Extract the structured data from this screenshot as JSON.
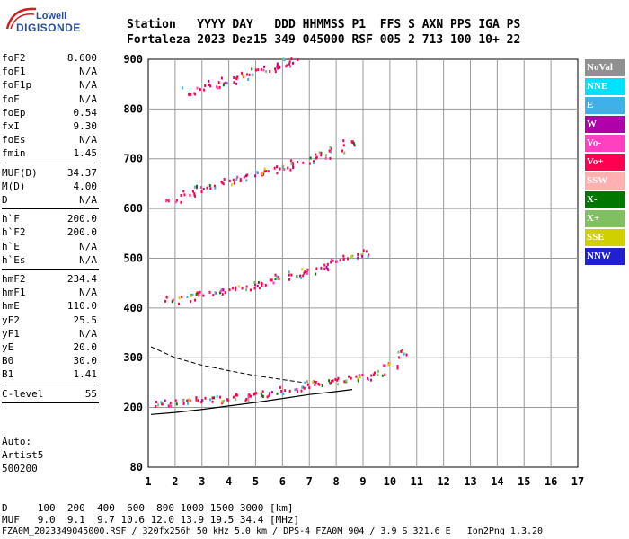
{
  "logo": {
    "top": "Lowell",
    "bottom": "DIGISONDE"
  },
  "header": {
    "line1": "Station   YYYY DAY   DDD HHMMSS P1  FFS S AXN PPS IGA PS",
    "line2": "Fortaleza 2023 Dez15 349 045000 RSF 005 2 713 100 10+ 22"
  },
  "params_groups": [
    [
      [
        "foF2",
        "8.600"
      ],
      [
        "foF1",
        "N/A"
      ],
      [
        "foF1p",
        "N/A"
      ],
      [
        "foE",
        "N/A"
      ],
      [
        "foEp",
        "0.54"
      ],
      [
        "fxI",
        "9.30"
      ],
      [
        "foEs",
        "N/A"
      ],
      [
        "fmin",
        "1.45"
      ]
    ],
    [
      [
        "MUF(D)",
        "34.37"
      ],
      [
        "M(D)",
        "4.00"
      ],
      [
        "D",
        "N/A"
      ]
    ],
    [
      [
        "h`F",
        "200.0"
      ],
      [
        "h`F2",
        "200.0"
      ],
      [
        "h`E",
        "N/A"
      ],
      [
        "h`Es",
        "N/A"
      ]
    ],
    [
      [
        "hmF2",
        "234.4"
      ],
      [
        "hmF1",
        "N/A"
      ],
      [
        "hmE",
        "110.0"
      ],
      [
        "yF2",
        "25.5"
      ],
      [
        "yF1",
        "N/A"
      ],
      [
        "yE",
        "20.0"
      ],
      [
        "B0",
        "30.0"
      ],
      [
        "B1",
        "1.41"
      ]
    ],
    [
      [
        "C-level",
        "55"
      ]
    ]
  ],
  "auto": [
    "Auto:",
    "Artist5",
    "500200"
  ],
  "legend": [
    {
      "label": "NoVal",
      "color": "#909090"
    },
    {
      "label": "NNE",
      "color": "#00e0ff"
    },
    {
      "label": "E",
      "color": "#40b0e8"
    },
    {
      "label": "W",
      "color": "#b000a8"
    },
    {
      "label": "Vo-",
      "color": "#ff40c0"
    },
    {
      "label": "Vo+",
      "color": "#ff0050"
    },
    {
      "label": "SSW",
      "color": "#ffb0b0"
    },
    {
      "label": "X-",
      "color": "#007800"
    },
    {
      "label": "X+",
      "color": "#80c060"
    },
    {
      "label": "SSE",
      "color": "#d0d000"
    },
    {
      "label": "NNW",
      "color": "#2020d0"
    }
  ],
  "footer": {
    "line1": "D     100  200  400  600  800 1000 1500 3000 [km]",
    "line2": "MUF   9.0  9.1  9.7 10.6 12.0 13.9 19.5 34.4 [MHz]",
    "line3": "FZA0M_2023349045000.RSF / 320fx256h 50 kHz 5.0 km / DPS-4 FZA0M 904 / 3.9 S 321.6 E   Ion2Png 1.3.20"
  },
  "chart_data": {
    "type": "scatter",
    "xlim": [
      1,
      17
    ],
    "ylim": [
      80,
      900
    ],
    "x_ticks": [
      1,
      2,
      3,
      4,
      5,
      6,
      7,
      8,
      9,
      10,
      11,
      12,
      13,
      14,
      15,
      16,
      17
    ],
    "y_ticks": [
      80,
      200,
      300,
      400,
      500,
      600,
      700,
      800,
      900
    ],
    "grid": true,
    "xlabel": "",
    "ylabel": "",
    "traces": [
      {
        "color": "#ff0050",
        "x": [
          1.5,
          2,
          2.5,
          3,
          3.5,
          4,
          4.5,
          5,
          5.5,
          6,
          6.5,
          7,
          7.5,
          8,
          8.5,
          9,
          9.5,
          10,
          10.4
        ],
        "y": [
          210,
          212,
          214,
          216,
          218,
          220,
          222,
          225,
          230,
          236,
          242,
          248,
          252,
          255,
          258,
          262,
          270,
          285,
          310
        ]
      },
      {
        "color": "#ff0050",
        "x": [
          1.9,
          2.5,
          3,
          3.5,
          4,
          4.5,
          5,
          5.5,
          6,
          6.5,
          7,
          7.5,
          8,
          8.5,
          9
        ],
        "y": [
          418,
          422,
          428,
          433,
          438,
          443,
          448,
          455,
          462,
          470,
          478,
          486,
          494,
          502,
          512
        ]
      },
      {
        "color": "#ff0050",
        "x": [
          1.9,
          2.5,
          3,
          3.5,
          4,
          4.5,
          5,
          5.5,
          6,
          6.5,
          7,
          7.5,
          8,
          8.4
        ],
        "y": [
          622,
          632,
          642,
          650,
          657,
          663,
          670,
          677,
          684,
          692,
          700,
          710,
          720,
          735
        ]
      },
      {
        "color": "#ff0050",
        "x": [
          2.5,
          3,
          3.5,
          4,
          4.5,
          5,
          5.5,
          6,
          6.3
        ],
        "y": [
          838,
          845,
          852,
          860,
          868,
          876,
          884,
          892,
          898
        ]
      }
    ],
    "profile_solid": {
      "x": [
        1.1,
        2,
        3,
        4,
        5,
        6,
        7,
        8,
        8.6
      ],
      "y": [
        186,
        190,
        196,
        203,
        210,
        218,
        226,
        232,
        236
      ]
    },
    "profile_dashed": {
      "x": [
        1.1,
        2,
        3,
        4,
        5,
        6,
        6.8
      ],
      "y": [
        322,
        300,
        285,
        274,
        264,
        256,
        250
      ]
    }
  }
}
